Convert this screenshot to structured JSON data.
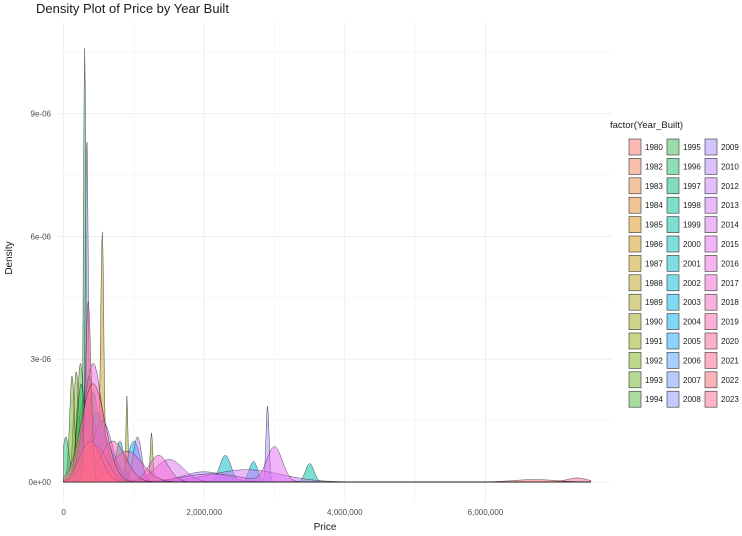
{
  "chart_data": {
    "type": "area",
    "subtype": "density",
    "title": "Density Plot of Price by Year Built",
    "xlabel": "Price",
    "ylabel": "Density",
    "x_ticks": [
      0,
      2000000,
      4000000,
      6000000
    ],
    "x_tick_labels": [
      "0",
      "2,000,000",
      "4,000,000",
      "6,000,000"
    ],
    "y_ticks": [
      0,
      3e-06,
      6e-06,
      9e-06
    ],
    "y_tick_labels": [
      "0e+00",
      "3e-06",
      "6e-06",
      "9e-06"
    ],
    "xlim": [
      -80000,
      7800000
    ],
    "ylim": [
      0,
      1.08e-05
    ],
    "grid": true,
    "legend": {
      "title": "factor(Year_Built)",
      "position": "right",
      "columns": [
        [
          "1980",
          "1982",
          "1983",
          "1984",
          "1985",
          "1986",
          "1987",
          "1988",
          "1989",
          "1990",
          "1991",
          "1992",
          "1993",
          "1994"
        ],
        [
          "1995",
          "1996",
          "1997",
          "1998",
          "1999",
          "2000",
          "2001",
          "2002",
          "2003",
          "2004",
          "2005",
          "2006",
          "2007",
          "2008"
        ],
        [
          "2009",
          "2010",
          "2012",
          "2013",
          "2014",
          "2015",
          "2016",
          "2017",
          "2018",
          "2019",
          "2020",
          "2021",
          "2022",
          "2023"
        ]
      ]
    },
    "series": [
      {
        "name": "1980",
        "color": "#F8766D",
        "peaks": [
          [
            420000,
            1.3e-06,
            130000
          ]
        ]
      },
      {
        "name": "1982",
        "color": "#F47F5A",
        "peaks": [
          [
            380000,
            1.1e-06,
            120000
          ]
        ]
      },
      {
        "name": "1983",
        "color": "#EE8844",
        "peaks": [
          [
            300000,
            1.5e-06,
            90000
          ]
        ]
      },
      {
        "name": "1984",
        "color": "#E68A2B",
        "peaks": [
          [
            350000,
            1.2e-06,
            110000
          ]
        ]
      },
      {
        "name": "1985",
        "color": "#DC8F1A",
        "peaks": [
          [
            450000,
            1e-06,
            150000
          ]
        ]
      },
      {
        "name": "1986",
        "color": "#D29516",
        "peaks": [
          [
            500000,
            1.2e-06,
            140000
          ]
        ]
      },
      {
        "name": "1987",
        "color": "#C79B1C",
        "peaks": [
          [
            550000,
            5.6e-06,
            22000
          ],
          [
            400000,
            1e-06,
            130000
          ]
        ]
      },
      {
        "name": "1988",
        "color": "#BBA11F",
        "peaks": [
          [
            320000,
            1.6e-06,
            100000
          ]
        ]
      },
      {
        "name": "1989",
        "color": "#AEA51C",
        "peaks": [
          [
            280000,
            2e-06,
            70000
          ]
        ]
      },
      {
        "name": "1990",
        "color": "#A0A917",
        "peaks": [
          [
            900000,
            2.1e-06,
            14000
          ],
          [
            400000,
            1e-06,
            120000
          ]
        ]
      },
      {
        "name": "1991",
        "color": "#90AD13",
        "peaks": [
          [
            180000,
            2.7e-06,
            40000
          ]
        ]
      },
      {
        "name": "1992",
        "color": "#7FB11A",
        "peaks": [
          [
            1250000,
            1.2e-06,
            18000
          ],
          [
            500000,
            1e-06,
            150000
          ]
        ]
      },
      {
        "name": "1993",
        "color": "#6BB42B",
        "peaks": [
          [
            120000,
            2.6e-06,
            35000
          ]
        ]
      },
      {
        "name": "1994",
        "color": "#55B73F",
        "peaks": [
          [
            240000,
            2.9e-06,
            50000
          ]
        ]
      },
      {
        "name": "1995",
        "color": "#3CB953",
        "peaks": [
          [
            300000,
            1.06e-05,
            18000
          ]
        ]
      },
      {
        "name": "1996",
        "color": "#1EBB69",
        "peaks": [
          [
            30000,
            1.1e-06,
            45000
          ],
          [
            250000,
            2.4e-06,
            60000
          ]
        ]
      },
      {
        "name": "1997",
        "color": "#00BC7D",
        "peaks": [
          [
            360000,
            2.6e-06,
            70000
          ]
        ]
      },
      {
        "name": "1998",
        "color": "#00BD91",
        "peaks": [
          [
            420000,
            2.2e-06,
            90000
          ]
        ]
      },
      {
        "name": "1999",
        "color": "#00BDA5",
        "peaks": [
          [
            3500000,
            4.5e-07,
            60000
          ]
        ]
      },
      {
        "name": "2000",
        "color": "#00BCB8",
        "peaks": [
          [
            800000,
            1e-06,
            60000
          ]
        ]
      },
      {
        "name": "2001",
        "color": "#00BAC9",
        "peaks": [
          [
            2300000,
            6.5e-07,
            80000
          ],
          [
            600000,
            9e-07,
            150000
          ]
        ]
      },
      {
        "name": "2002",
        "color": "#00B7D9",
        "peaks": [
          [
            2700000,
            5e-07,
            60000
          ]
        ]
      },
      {
        "name": "2003",
        "color": "#00B3E8",
        "peaks": [
          [
            480000,
            1.7e-06,
            110000
          ]
        ]
      },
      {
        "name": "2004",
        "color": "#00AEF4",
        "peaks": [
          [
            1000000,
            1e-06,
            90000
          ]
        ]
      },
      {
        "name": "2005",
        "color": "#19A8FF",
        "peaks": [
          [
            520000,
            1.4e-06,
            120000
          ]
        ]
      },
      {
        "name": "2006",
        "color": "#4BA1FF",
        "peaks": [
          [
            350000,
            1.8e-06,
            90000
          ]
        ]
      },
      {
        "name": "2007",
        "color": "#7599FF",
        "peaks": [
          [
            400000,
            1.5e-06,
            110000
          ]
        ]
      },
      {
        "name": "2008",
        "color": "#8F93FF",
        "peaks": [
          [
            330000,
            8.4e-06,
            22000
          ]
        ]
      },
      {
        "name": "2009",
        "color": "#A58CFF",
        "peaks": [
          [
            2900000,
            1.85e-06,
            22000
          ],
          [
            2000000,
            2.5e-07,
            300000
          ]
        ]
      },
      {
        "name": "2010",
        "color": "#B785FF",
        "peaks": [
          [
            1050000,
            1.1e-06,
            60000
          ]
        ]
      },
      {
        "name": "2012",
        "color": "#C67EFD",
        "peaks": [
          [
            550000,
            1.5e-06,
            140000
          ]
        ]
      },
      {
        "name": "2013",
        "color": "#D378F8",
        "peaks": [
          [
            2600000,
            3e-07,
            500000
          ]
        ]
      },
      {
        "name": "2014",
        "color": "#DE73F0",
        "peaks": [
          [
            1500000,
            5.5e-07,
            200000
          ]
        ]
      },
      {
        "name": "2015",
        "color": "#E76BF3",
        "peaks": [
          [
            3000000,
            8.5e-07,
            110000
          ],
          [
            2100000,
            2e-07,
            400000
          ]
        ]
      },
      {
        "name": "2016",
        "color": "#ED68E0",
        "peaks": [
          [
            420000,
            2.9e-06,
            130000
          ]
        ]
      },
      {
        "name": "2017",
        "color": "#F266D1",
        "peaks": [
          [
            1350000,
            6.5e-07,
            140000
          ]
        ]
      },
      {
        "name": "2018",
        "color": "#F664C0",
        "peaks": [
          [
            900000,
            7.5e-07,
            220000
          ]
        ]
      },
      {
        "name": "2019",
        "color": "#FA62AD",
        "peaks": [
          [
            700000,
            1e-06,
            180000
          ]
        ]
      },
      {
        "name": "2020",
        "color": "#FC6299",
        "peaks": [
          [
            7300000,
            1e-07,
            140000
          ],
          [
            450000,
            9e-07,
            160000
          ]
        ]
      },
      {
        "name": "2021",
        "color": "#FD6386",
        "peaks": [
          [
            350000,
            4.4e-06,
            40000
          ]
        ]
      },
      {
        "name": "2022",
        "color": "#FA6774",
        "peaks": [
          [
            6700000,
            6e-08,
            300000
          ],
          [
            380000,
            1e-06,
            150000
          ]
        ]
      },
      {
        "name": "2023",
        "color": "#FF6C91",
        "peaks": [
          [
            420000,
            2.4e-06,
            170000
          ]
        ]
      }
    ]
  }
}
